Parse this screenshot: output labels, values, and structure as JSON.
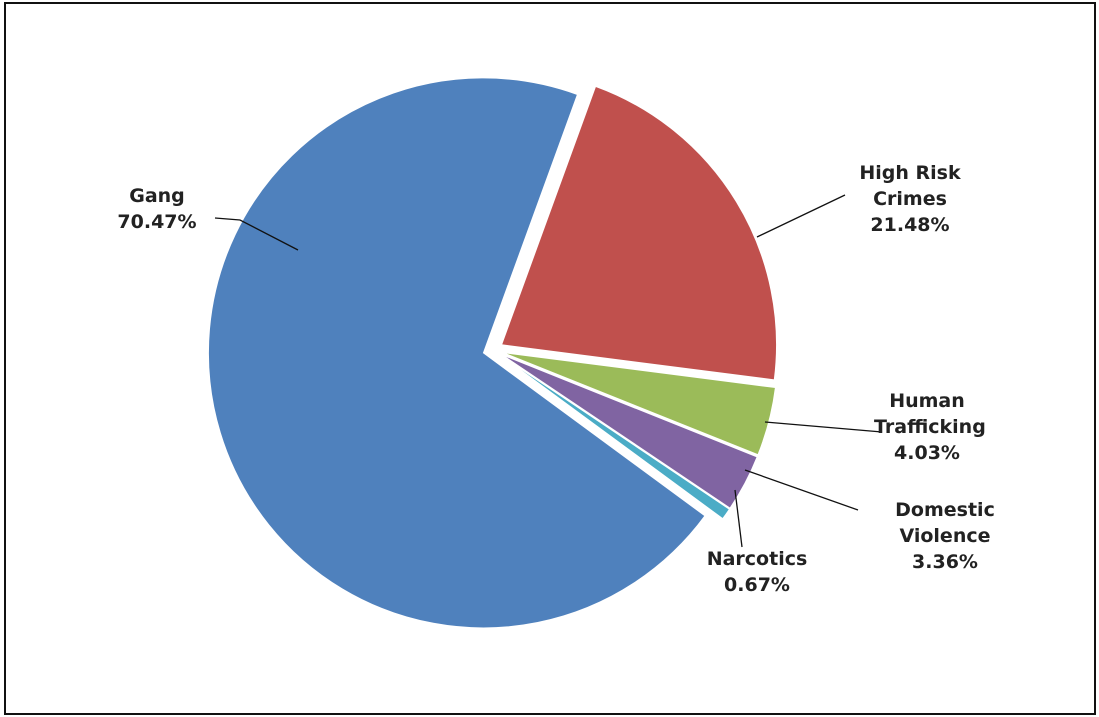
{
  "chart_data": {
    "type": "pie",
    "categories": [
      "High Risk Crimes",
      "Human Trafficking",
      "Domestic Violence",
      "Narcotics",
      "Gang"
    ],
    "values": [
      21.48,
      4.03,
      3.36,
      0.67,
      70.47
    ],
    "value_labels": [
      "21.48%",
      "4.03%",
      "3.36%",
      "0.67%",
      "70.47%"
    ],
    "colors": [
      "#c0504d",
      "#9bbb59",
      "#8064a2",
      "#4bacc6",
      "#4f81bd"
    ],
    "exploded": true
  }
}
